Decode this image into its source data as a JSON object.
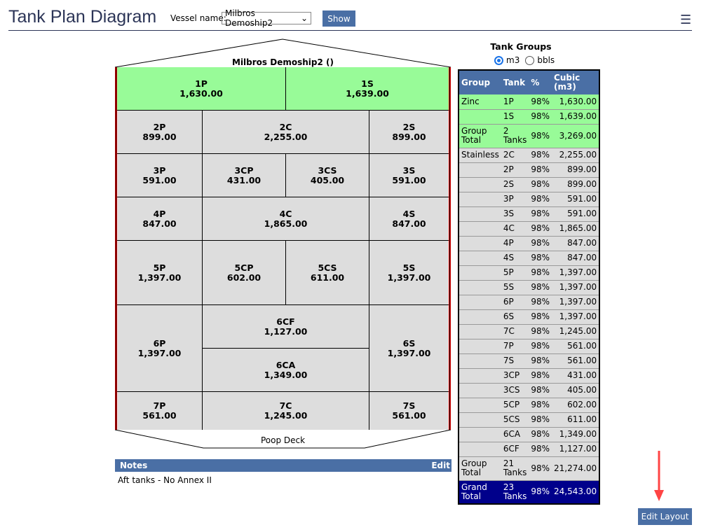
{
  "header": {
    "title": "Tank Plan Diagram",
    "vessel_label": "Vessel name:",
    "vessel_value": "Milbros Demoship2",
    "show": "Show",
    "menu_icon": "hamburger-icon"
  },
  "diagram": {
    "ship_name": "Milbros Demoship2 ()",
    "stern_label": "Poop Deck",
    "tanks": [
      {
        "name": "1P",
        "value": "1,630.00",
        "group": "Zinc"
      },
      {
        "name": "1S",
        "value": "1,639.00",
        "group": "Zinc"
      },
      {
        "name": "2P",
        "value": "899.00"
      },
      {
        "name": "2C",
        "value": "2,255.00"
      },
      {
        "name": "2S",
        "value": "899.00"
      },
      {
        "name": "3P",
        "value": "591.00"
      },
      {
        "name": "3CP",
        "value": "431.00"
      },
      {
        "name": "3CS",
        "value": "405.00"
      },
      {
        "name": "3S",
        "value": "591.00"
      },
      {
        "name": "4P",
        "value": "847.00"
      },
      {
        "name": "4C",
        "value": "1,865.00"
      },
      {
        "name": "4S",
        "value": "847.00"
      },
      {
        "name": "5P",
        "value": "1,397.00"
      },
      {
        "name": "5CP",
        "value": "602.00"
      },
      {
        "name": "5CS",
        "value": "611.00"
      },
      {
        "name": "5S",
        "value": "1,397.00"
      },
      {
        "name": "6P",
        "value": "1,397.00"
      },
      {
        "name": "6CF",
        "value": "1,127.00"
      },
      {
        "name": "6S",
        "value": "1,397.00"
      },
      {
        "name": "6CA",
        "value": "1,349.00"
      },
      {
        "name": "7P",
        "value": "561.00"
      },
      {
        "name": "7C",
        "value": "1,245.00"
      },
      {
        "name": "7S",
        "value": "561.00"
      }
    ]
  },
  "notes": {
    "title": "Notes",
    "edit": "Edit",
    "text": "Aft tanks - No Annex II"
  },
  "tank_groups": {
    "title": "Tank Groups",
    "unit_m3": "m3",
    "unit_bbls": "bbls",
    "selected": "m3",
    "headers": [
      "Group",
      "Tank",
      "%",
      "Cubic (m3)"
    ],
    "rows": [
      [
        "Zinc",
        "1P",
        "98%",
        "1,630.00",
        "g"
      ],
      [
        "",
        "1S",
        "98%",
        "1,639.00",
        "g"
      ],
      [
        "Group Total",
        "2 Tanks",
        "98%",
        "3,269.00",
        "g gt"
      ],
      [
        "Stainless",
        "2C",
        "98%",
        "2,255.00",
        "s"
      ],
      [
        "",
        "2P",
        "98%",
        "899.00",
        "s"
      ],
      [
        "",
        "2S",
        "98%",
        "899.00",
        "s"
      ],
      [
        "",
        "3P",
        "98%",
        "591.00",
        "s"
      ],
      [
        "",
        "3S",
        "98%",
        "591.00",
        "s"
      ],
      [
        "",
        "4C",
        "98%",
        "1,865.00",
        "s"
      ],
      [
        "",
        "4P",
        "98%",
        "847.00",
        "s"
      ],
      [
        "",
        "4S",
        "98%",
        "847.00",
        "s"
      ],
      [
        "",
        "5P",
        "98%",
        "1,397.00",
        "s"
      ],
      [
        "",
        "5S",
        "98%",
        "1,397.00",
        "s"
      ],
      [
        "",
        "6P",
        "98%",
        "1,397.00",
        "s"
      ],
      [
        "",
        "6S",
        "98%",
        "1,397.00",
        "s"
      ],
      [
        "",
        "7C",
        "98%",
        "1,245.00",
        "s"
      ],
      [
        "",
        "7P",
        "98%",
        "561.00",
        "s"
      ],
      [
        "",
        "7S",
        "98%",
        "561.00",
        "s"
      ],
      [
        "",
        "3CP",
        "98%",
        "431.00",
        "s"
      ],
      [
        "",
        "3CS",
        "98%",
        "405.00",
        "s"
      ],
      [
        "",
        "5CP",
        "98%",
        "602.00",
        "s"
      ],
      [
        "",
        "5CS",
        "98%",
        "611.00",
        "s"
      ],
      [
        "",
        "6CA",
        "98%",
        "1,349.00",
        "s"
      ],
      [
        "",
        "6CF",
        "98%",
        "1,127.00",
        "s"
      ],
      [
        "Group Total",
        "21 Tanks",
        "98%",
        "21,274.00",
        "s gt"
      ],
      [
        "Grand Total",
        "23 Tanks",
        "98%",
        "24,543.00",
        "grand"
      ]
    ]
  },
  "edit_layout": "Edit Layout",
  "colors": {
    "accent": "#4a6fa5",
    "zinc": "#98fb98",
    "stainless": "#dddddd",
    "grand": "#00008b"
  }
}
